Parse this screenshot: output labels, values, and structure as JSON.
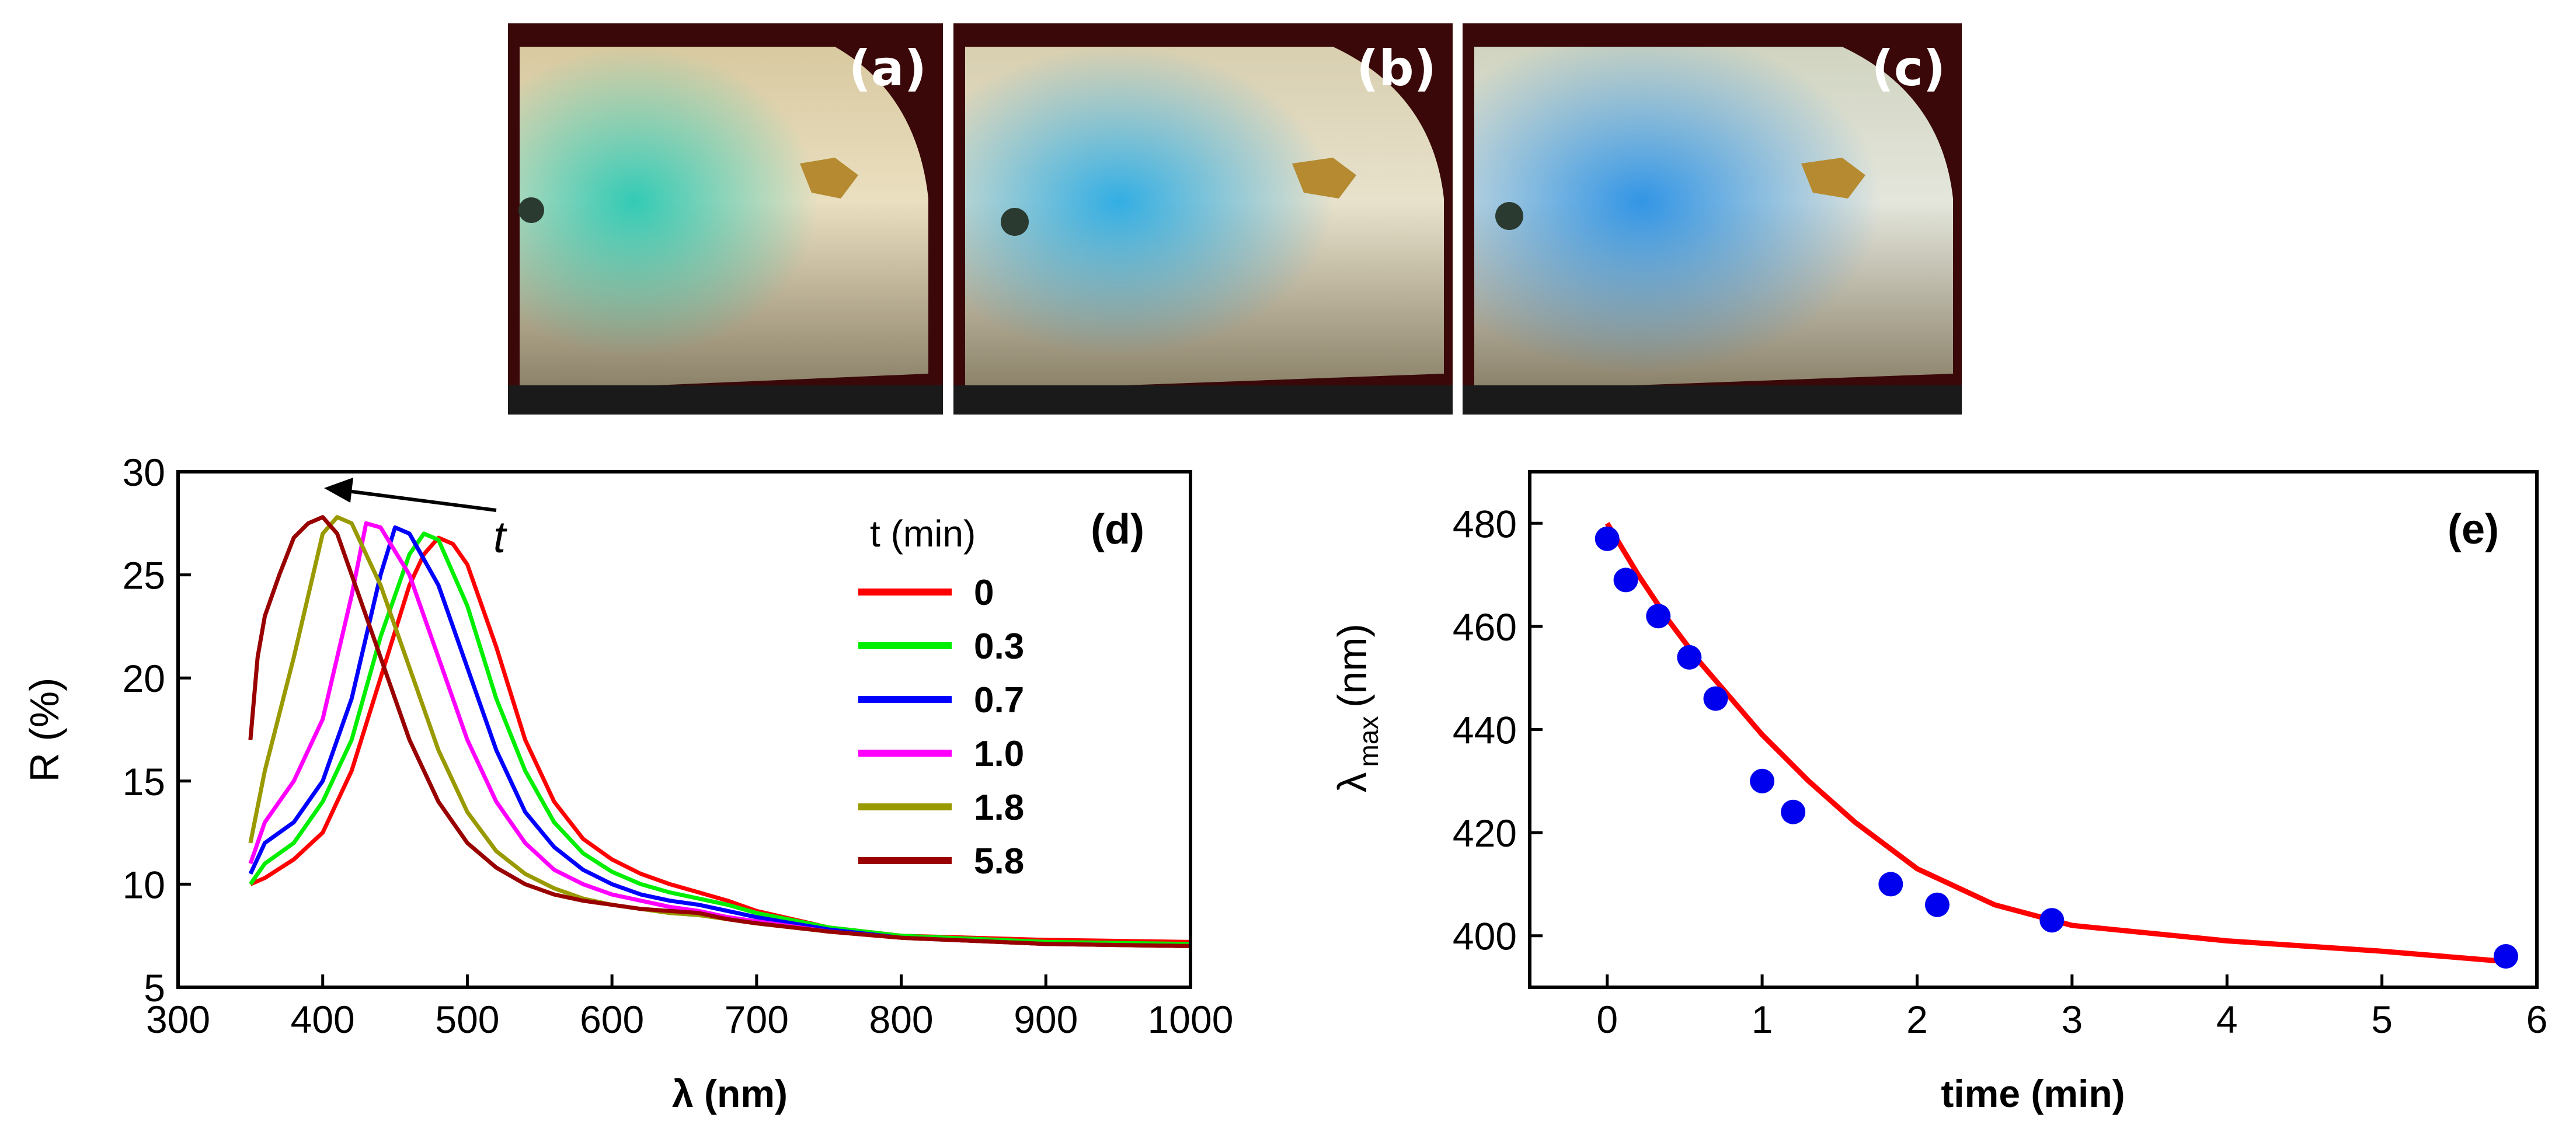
{
  "photos": [
    {
      "label": "(a)",
      "tint": "#1ec8b4"
    },
    {
      "label": "(b)",
      "tint": "#1ea8e6"
    },
    {
      "label": "(c)",
      "tint": "#1e8ce6"
    }
  ],
  "chart_data": [
    {
      "type": "line",
      "panel_label": "(d)",
      "xlabel": "λ (nm)",
      "ylabel": "R (%)",
      "xlim": [
        300,
        1000
      ],
      "ylim": [
        5,
        30
      ],
      "xticks": [
        300,
        400,
        500,
        600,
        700,
        800,
        900,
        1000
      ],
      "yticks": [
        5,
        10,
        15,
        20,
        25,
        30
      ],
      "grid": false,
      "legend_title": "t (min)",
      "legend_position": "top-right",
      "arrow_label": "t",
      "series": [
        {
          "name": "0",
          "color": "#ff0000",
          "x": [
            350,
            360,
            380,
            400,
            420,
            440,
            460,
            470,
            480,
            490,
            500,
            520,
            540,
            560,
            580,
            600,
            620,
            640,
            660,
            680,
            700,
            750,
            800,
            900,
            1000
          ],
          "y": [
            10,
            10.3,
            11.2,
            12.5,
            15.5,
            20,
            24.5,
            26,
            26.8,
            26.5,
            25.5,
            21.5,
            17,
            14,
            12.2,
            11.2,
            10.5,
            10,
            9.6,
            9.2,
            8.7,
            7.9,
            7.5,
            7.3,
            7.2
          ]
        },
        {
          "name": "0.3",
          "color": "#00ee00",
          "x": [
            350,
            360,
            380,
            400,
            420,
            440,
            460,
            470,
            480,
            500,
            520,
            540,
            560,
            580,
            600,
            620,
            640,
            660,
            680,
            700,
            750,
            800,
            900,
            1000
          ],
          "y": [
            10,
            11,
            12,
            14,
            17,
            22,
            26,
            27,
            26.7,
            23.5,
            19,
            15.5,
            13,
            11.5,
            10.6,
            10,
            9.6,
            9.3,
            9,
            8.6,
            7.9,
            7.5,
            7.2,
            7.1
          ]
        },
        {
          "name": "0.7",
          "color": "#0000ff",
          "x": [
            350,
            360,
            380,
            400,
            420,
            440,
            450,
            460,
            480,
            500,
            520,
            540,
            560,
            580,
            600,
            620,
            640,
            660,
            680,
            700,
            750,
            800,
            900,
            1000
          ],
          "y": [
            10.5,
            12,
            13,
            15,
            19,
            25,
            27.3,
            27,
            24.5,
            20.5,
            16.5,
            13.5,
            11.8,
            10.7,
            10,
            9.5,
            9.2,
            9,
            8.7,
            8.4,
            7.8,
            7.4,
            7.1,
            7
          ]
        },
        {
          "name": "1.0",
          "color": "#ff00ff",
          "x": [
            350,
            360,
            380,
            400,
            420,
            430,
            440,
            460,
            480,
            500,
            520,
            540,
            560,
            580,
            600,
            620,
            640,
            660,
            680,
            700,
            750,
            800,
            900,
            1000
          ],
          "y": [
            11,
            13,
            15,
            18,
            24,
            27.5,
            27.3,
            25,
            21,
            17,
            14,
            12,
            10.7,
            10,
            9.5,
            9.2,
            8.9,
            8.7,
            8.4,
            8.2,
            7.7,
            7.4,
            7.1,
            7
          ]
        },
        {
          "name": "1.8",
          "color": "#999900",
          "x": [
            350,
            360,
            380,
            400,
            410,
            420,
            440,
            460,
            480,
            500,
            520,
            540,
            560,
            580,
            600,
            620,
            640,
            660,
            680,
            700,
            750,
            800,
            900,
            1000
          ],
          "y": [
            12,
            15.5,
            21,
            27,
            27.8,
            27.5,
            24.5,
            20.5,
            16.5,
            13.5,
            11.6,
            10.5,
            9.8,
            9.3,
            9,
            8.8,
            8.6,
            8.5,
            8.3,
            8.1,
            7.7,
            7.4,
            7.1,
            7
          ]
        },
        {
          "name": "5.8",
          "color": "#990000",
          "x": [
            350,
            355,
            360,
            370,
            380,
            390,
            400,
            410,
            420,
            440,
            460,
            480,
            500,
            520,
            540,
            560,
            580,
            600,
            620,
            640,
            660,
            680,
            700,
            750,
            800,
            900,
            1000
          ],
          "y": [
            17,
            21,
            23,
            25,
            26.8,
            27.5,
            27.8,
            27,
            25,
            21,
            17,
            14,
            12,
            10.8,
            10,
            9.5,
            9.2,
            9,
            8.8,
            8.7,
            8.6,
            8.3,
            8.1,
            7.7,
            7.4,
            7.1,
            7
          ]
        }
      ]
    },
    {
      "type": "scatter",
      "panel_label": "(e)",
      "xlabel": "time (min)",
      "ylabel_main": "λ",
      "ylabel_sub": "max",
      "ylabel_unit": "(nm)",
      "xlim": [
        -0.5,
        6
      ],
      "ylim": [
        390,
        490
      ],
      "xticks": [
        0,
        1,
        2,
        3,
        4,
        5,
        6
      ],
      "yticks": [
        400,
        420,
        440,
        460,
        480
      ],
      "grid": false,
      "points_color": "#0000ee",
      "fit_color": "#ff0000",
      "points": {
        "x": [
          0,
          0.12,
          0.33,
          0.53,
          0.7,
          1.0,
          1.2,
          1.83,
          2.13,
          2.87,
          5.8
        ],
        "y": [
          477,
          469,
          462,
          454,
          446,
          430,
          424,
          410,
          406,
          403,
          396
        ]
      },
      "fit": {
        "x": [
          0,
          0.2,
          0.4,
          0.6,
          0.8,
          1.0,
          1.3,
          1.6,
          2.0,
          2.5,
          3.0,
          4.0,
          5.0,
          5.8
        ],
        "y": [
          480,
          470,
          461,
          453,
          446,
          439,
          430,
          422,
          413,
          406,
          402,
          399,
          397,
          395
        ]
      }
    }
  ]
}
